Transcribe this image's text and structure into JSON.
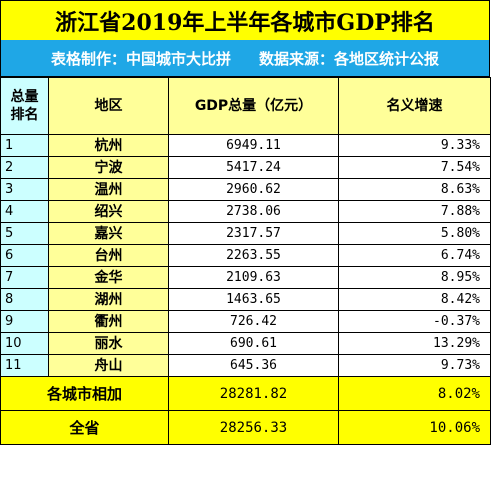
{
  "title": "浙江省2019年上半年各城市GDP排名",
  "source_line": {
    "maker": "表格制作：中国城市大比拼",
    "origin": "数据来源：各地区统计公报"
  },
  "headers": {
    "rank": "总量排名",
    "city": "地区",
    "gdp": "GDP总量（亿元）",
    "growth": "名义增速"
  },
  "rows": [
    {
      "rank": "1",
      "city": "杭州",
      "gdp": "6949.11",
      "growth": "9.33%"
    },
    {
      "rank": "2",
      "city": "宁波",
      "gdp": "5417.24",
      "growth": "7.54%"
    },
    {
      "rank": "3",
      "city": "温州",
      "gdp": "2960.62",
      "growth": "8.63%"
    },
    {
      "rank": "4",
      "city": "绍兴",
      "gdp": "2738.06",
      "growth": "7.88%"
    },
    {
      "rank": "5",
      "city": "嘉兴",
      "gdp": "2317.57",
      "growth": "5.80%"
    },
    {
      "rank": "6",
      "city": "台州",
      "gdp": "2263.55",
      "growth": "6.74%"
    },
    {
      "rank": "7",
      "city": "金华",
      "gdp": "2109.63",
      "growth": "8.95%"
    },
    {
      "rank": "8",
      "city": "湖州",
      "gdp": "1463.65",
      "growth": "8.42%"
    },
    {
      "rank": "9",
      "city": "衢州",
      "gdp": "726.42",
      "growth": "-0.37%"
    },
    {
      "rank": "10",
      "city": "丽水",
      "gdp": "690.61",
      "growth": "13.29%"
    },
    {
      "rank": "11",
      "city": "舟山",
      "gdp": "645.36",
      "growth": "9.73%"
    }
  ],
  "totals": [
    {
      "label": "各城市相加",
      "gdp": "28281.82",
      "growth": "8.02%"
    },
    {
      "label": "全省",
      "gdp": "28256.33",
      "growth": "10.06%"
    }
  ],
  "colors": {
    "title_bg": "#ffff00",
    "source_bg": "#1fa7e6",
    "rank_bg": "#ccffff",
    "city_bg": "#ffff99",
    "total_bg": "#ffff00"
  }
}
